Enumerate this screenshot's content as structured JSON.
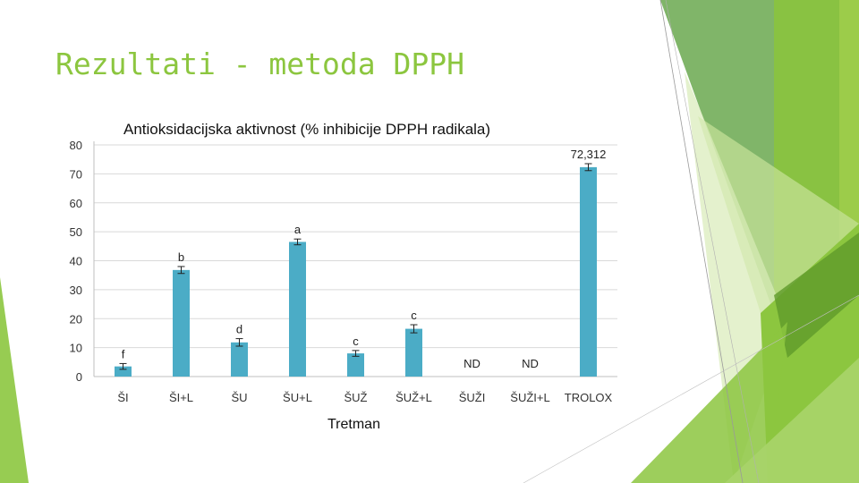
{
  "slide": {
    "title": "Rezultati - metoda DPPH",
    "accent": "#8cc63f"
  },
  "chart_data": {
    "type": "bar",
    "title": "Antioksidacijska aktivnost (% inhibicije DPPH radikala)",
    "xlabel": "Tretman",
    "ylabel": "",
    "ylim": [
      0,
      80
    ],
    "yticks": [
      0,
      10,
      20,
      30,
      40,
      50,
      60,
      70,
      80
    ],
    "grid": true,
    "bar_color": "#4bacc6",
    "categories": [
      "ŠI",
      "ŠI+L",
      "ŠU",
      "ŠU+L",
      "ŠUŽ",
      "ŠUŽ+L",
      "ŠUŽI",
      "ŠUŽI+L",
      "TROLOX"
    ],
    "values": [
      3.5,
      36.8,
      11.8,
      46.5,
      8.0,
      16.5,
      null,
      null,
      72.312
    ],
    "errors": [
      1.0,
      1.2,
      1.3,
      1.0,
      1.0,
      1.4,
      null,
      null,
      1.2
    ],
    "annotations": [
      "f",
      "b",
      "d",
      "a",
      "c",
      "c",
      "ND",
      "ND",
      "72,312"
    ]
  }
}
